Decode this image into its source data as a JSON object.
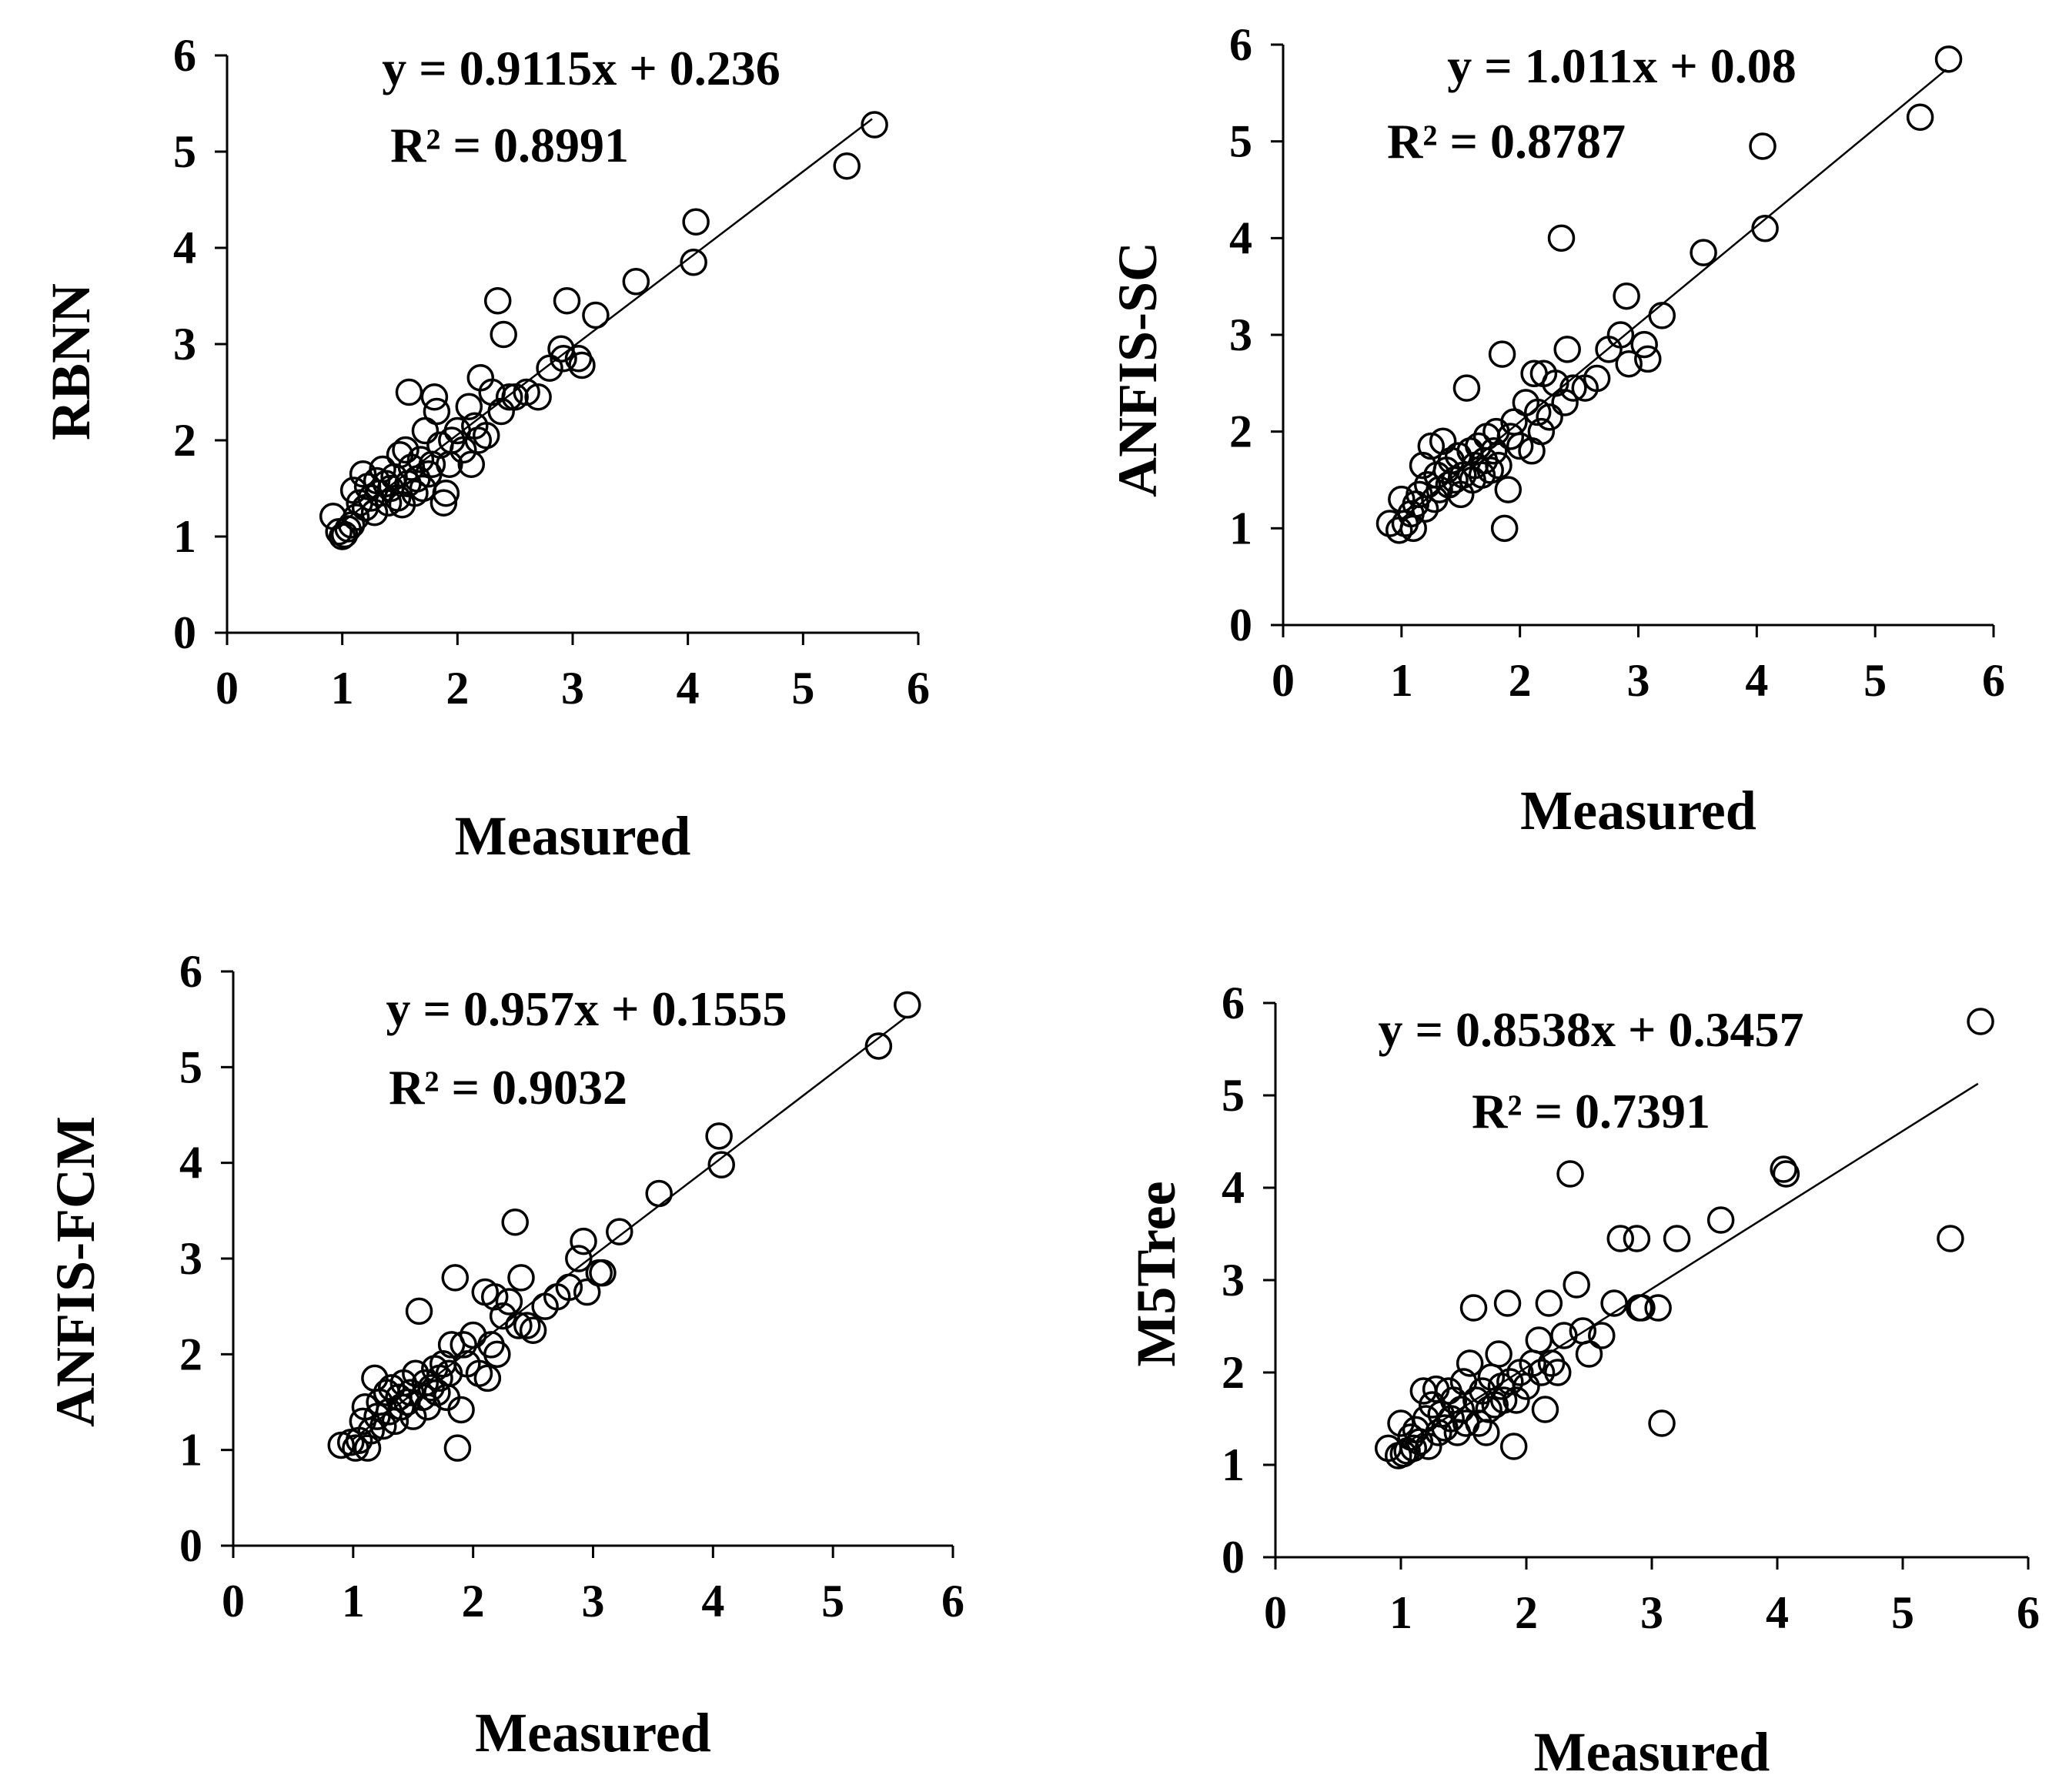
{
  "chart_data": [
    {
      "type": "scatter",
      "ylabel": "RBNN",
      "xlabel": "Measured",
      "equation": "y = 0.9115x + 0.236",
      "r2": "R² = 0.8991",
      "trend": {
        "slope": 0.9115,
        "intercept": 0.236,
        "x_range": [
          1.0,
          5.6
        ]
      },
      "xlim": [
        0,
        6
      ],
      "ylim": [
        0,
        6
      ],
      "xticks": [
        "0",
        "1",
        "2",
        "3",
        "4",
        "5",
        "6"
      ],
      "yticks": [
        "0",
        "1",
        "2",
        "3",
        "4",
        "5",
        "6"
      ],
      "points": [
        [
          0.92,
          1.21
        ],
        [
          0.97,
          1.05
        ],
        [
          1.0,
          1.0
        ],
        [
          1.02,
          1.02
        ],
        [
          1.05,
          1.08
        ],
        [
          1.08,
          1.12
        ],
        [
          1.1,
          1.48
        ],
        [
          1.12,
          1.2
        ],
        [
          1.15,
          1.35
        ],
        [
          1.18,
          1.65
        ],
        [
          1.2,
          1.3
        ],
        [
          1.22,
          1.52
        ],
        [
          1.25,
          1.4
        ],
        [
          1.28,
          1.25
        ],
        [
          1.3,
          1.58
        ],
        [
          1.32,
          1.45
        ],
        [
          1.35,
          1.7
        ],
        [
          1.38,
          1.55
        ],
        [
          1.4,
          1.35
        ],
        [
          1.42,
          1.5
        ],
        [
          1.45,
          1.62
        ],
        [
          1.48,
          1.4
        ],
        [
          1.5,
          1.85
        ],
        [
          1.52,
          1.33
        ],
        [
          1.55,
          1.9
        ],
        [
          1.57,
          1.55
        ],
        [
          1.58,
          2.5
        ],
        [
          1.6,
          1.72
        ],
        [
          1.63,
          1.45
        ],
        [
          1.65,
          1.6
        ],
        [
          1.68,
          1.8
        ],
        [
          1.7,
          1.5
        ],
        [
          1.72,
          2.1
        ],
        [
          1.75,
          1.65
        ],
        [
          1.78,
          1.75
        ],
        [
          1.8,
          2.45
        ],
        [
          1.82,
          2.3
        ],
        [
          1.85,
          1.95
        ],
        [
          1.88,
          1.35
        ],
        [
          1.9,
          1.45
        ],
        [
          1.93,
          1.75
        ],
        [
          1.95,
          2.0
        ],
        [
          2.0,
          2.1
        ],
        [
          2.05,
          1.9
        ],
        [
          2.1,
          2.35
        ],
        [
          2.12,
          1.75
        ],
        [
          2.15,
          2.15
        ],
        [
          2.18,
          2.0
        ],
        [
          2.2,
          2.65
        ],
        [
          2.25,
          2.05
        ],
        [
          2.3,
          2.5
        ],
        [
          2.35,
          3.45
        ],
        [
          2.38,
          2.3
        ],
        [
          2.4,
          3.1
        ],
        [
          2.45,
          2.45
        ],
        [
          2.5,
          2.45
        ],
        [
          2.6,
          2.5
        ],
        [
          2.7,
          2.45
        ],
        [
          2.8,
          2.75
        ],
        [
          2.9,
          2.95
        ],
        [
          2.92,
          2.85
        ],
        [
          2.95,
          3.45
        ],
        [
          3.05,
          2.85
        ],
        [
          3.08,
          2.78
        ],
        [
          3.2,
          3.3
        ],
        [
          3.55,
          3.65
        ],
        [
          4.05,
          3.85
        ],
        [
          4.07,
          4.27
        ],
        [
          5.38,
          4.85
        ],
        [
          5.62,
          5.28
        ]
      ]
    },
    {
      "type": "scatter",
      "ylabel": "ANFIS-SC",
      "xlabel": "Measured",
      "equation": "y = 1.011x + 0.08",
      "r2": "R² = 0.8787",
      "trend": {
        "slope": 1.011,
        "intercept": 0.08,
        "x_range": [
          1.0,
          5.6
        ]
      },
      "xlim": [
        0,
        6
      ],
      "ylim": [
        0,
        6
      ],
      "xticks": [
        "0",
        "1",
        "2",
        "3",
        "4",
        "5",
        "6"
      ],
      "yticks": [
        "0",
        "1",
        "2",
        "3",
        "4",
        "5",
        "6"
      ],
      "points": [
        [
          0.9,
          1.05
        ],
        [
          0.98,
          0.98
        ],
        [
          1.0,
          1.3
        ],
        [
          1.03,
          1.05
        ],
        [
          1.08,
          1.15
        ],
        [
          1.1,
          1.0
        ],
        [
          1.12,
          1.25
        ],
        [
          1.15,
          1.35
        ],
        [
          1.18,
          1.65
        ],
        [
          1.2,
          1.2
        ],
        [
          1.22,
          1.45
        ],
        [
          1.25,
          1.85
        ],
        [
          1.28,
          1.3
        ],
        [
          1.3,
          1.55
        ],
        [
          1.32,
          1.4
        ],
        [
          1.35,
          1.9
        ],
        [
          1.38,
          1.6
        ],
        [
          1.4,
          1.45
        ],
        [
          1.42,
          1.7
        ],
        [
          1.45,
          1.5
        ],
        [
          1.48,
          1.75
        ],
        [
          1.5,
          1.35
        ],
        [
          1.52,
          1.55
        ],
        [
          1.55,
          2.45
        ],
        [
          1.58,
          1.8
        ],
        [
          1.6,
          1.5
        ],
        [
          1.62,
          1.65
        ],
        [
          1.65,
          1.85
        ],
        [
          1.68,
          1.55
        ],
        [
          1.7,
          1.7
        ],
        [
          1.72,
          1.95
        ],
        [
          1.75,
          1.6
        ],
        [
          1.78,
          1.8
        ],
        [
          1.8,
          2.0
        ],
        [
          1.82,
          1.65
        ],
        [
          1.85,
          2.8
        ],
        [
          1.87,
          1.0
        ],
        [
          1.9,
          1.4
        ],
        [
          1.92,
          1.95
        ],
        [
          1.95,
          2.1
        ],
        [
          2.0,
          1.85
        ],
        [
          2.05,
          2.3
        ],
        [
          2.1,
          1.8
        ],
        [
          2.12,
          2.6
        ],
        [
          2.15,
          2.2
        ],
        [
          2.18,
          2.0
        ],
        [
          2.2,
          2.6
        ],
        [
          2.25,
          2.15
        ],
        [
          2.3,
          2.5
        ],
        [
          2.35,
          4.0
        ],
        [
          2.38,
          2.3
        ],
        [
          2.4,
          2.85
        ],
        [
          2.45,
          2.45
        ],
        [
          2.55,
          2.45
        ],
        [
          2.65,
          2.55
        ],
        [
          2.75,
          2.85
        ],
        [
          2.85,
          3.0
        ],
        [
          2.9,
          3.4
        ],
        [
          2.92,
          2.7
        ],
        [
          3.05,
          2.9
        ],
        [
          3.08,
          2.75
        ],
        [
          3.2,
          3.2
        ],
        [
          3.55,
          3.85
        ],
        [
          4.05,
          4.95
        ],
        [
          4.07,
          4.1
        ],
        [
          5.38,
          5.25
        ],
        [
          5.62,
          5.85
        ]
      ]
    },
    {
      "type": "scatter",
      "ylabel": "ANFIS-FCM",
      "xlabel": "Measured",
      "equation": "y = 0.957x + 0.1555",
      "r2": "R² = 0.9032",
      "trend": {
        "slope": 0.957,
        "intercept": 0.1555,
        "x_range": [
          1.0,
          5.6
        ]
      },
      "xlim": [
        0,
        6
      ],
      "ylim": [
        0,
        6
      ],
      "xticks": [
        "0",
        "1",
        "2",
        "3",
        "4",
        "5",
        "6"
      ],
      "yticks": [
        "0",
        "1",
        "2",
        "3",
        "4",
        "5",
        "6"
      ],
      "points": [
        [
          0.9,
          1.05
        ],
        [
          0.98,
          1.08
        ],
        [
          1.02,
          1.02
        ],
        [
          1.05,
          1.1
        ],
        [
          1.08,
          1.3
        ],
        [
          1.1,
          1.45
        ],
        [
          1.12,
          1.02
        ],
        [
          1.15,
          1.2
        ],
        [
          1.18,
          1.75
        ],
        [
          1.2,
          1.35
        ],
        [
          1.22,
          1.5
        ],
        [
          1.25,
          1.25
        ],
        [
          1.28,
          1.6
        ],
        [
          1.3,
          1.4
        ],
        [
          1.32,
          1.65
        ],
        [
          1.35,
          1.3
        ],
        [
          1.38,
          1.55
        ],
        [
          1.4,
          1.45
        ],
        [
          1.42,
          1.7
        ],
        [
          1.45,
          1.5
        ],
        [
          1.48,
          1.6
        ],
        [
          1.5,
          1.35
        ],
        [
          1.52,
          1.8
        ],
        [
          1.55,
          2.45
        ],
        [
          1.58,
          1.55
        ],
        [
          1.6,
          1.7
        ],
        [
          1.62,
          1.45
        ],
        [
          1.65,
          1.65
        ],
        [
          1.68,
          1.85
        ],
        [
          1.7,
          1.6
        ],
        [
          1.72,
          1.75
        ],
        [
          1.75,
          1.9
        ],
        [
          1.78,
          1.55
        ],
        [
          1.8,
          1.8
        ],
        [
          1.82,
          2.1
        ],
        [
          1.85,
          2.8
        ],
        [
          1.87,
          1.02
        ],
        [
          1.9,
          1.42
        ],
        [
          1.92,
          2.1
        ],
        [
          1.95,
          1.9
        ],
        [
          2.0,
          2.2
        ],
        [
          2.05,
          1.8
        ],
        [
          2.1,
          2.65
        ],
        [
          2.12,
          1.75
        ],
        [
          2.15,
          2.1
        ],
        [
          2.18,
          2.6
        ],
        [
          2.2,
          2.0
        ],
        [
          2.25,
          2.4
        ],
        [
          2.3,
          2.55
        ],
        [
          2.35,
          3.38
        ],
        [
          2.38,
          2.3
        ],
        [
          2.4,
          2.8
        ],
        [
          2.45,
          2.3
        ],
        [
          2.5,
          2.25
        ],
        [
          2.6,
          2.5
        ],
        [
          2.7,
          2.6
        ],
        [
          2.8,
          2.7
        ],
        [
          2.88,
          3.0
        ],
        [
          2.92,
          3.18
        ],
        [
          2.95,
          2.65
        ],
        [
          3.05,
          2.85
        ],
        [
          3.08,
          2.85
        ],
        [
          3.22,
          3.28
        ],
        [
          3.55,
          3.68
        ],
        [
          4.05,
          4.28
        ],
        [
          4.07,
          3.98
        ],
        [
          5.38,
          5.22
        ],
        [
          5.62,
          5.65
        ]
      ]
    },
    {
      "type": "scatter",
      "ylabel": "M5Tree",
      "xlabel": "Measured",
      "equation": "y = 0.8538x + 0.3457",
      "r2": "R² = 0.7391",
      "trend": {
        "slope": 0.8538,
        "intercept": 0.3457,
        "x_range": [
          1.0,
          5.6
        ]
      },
      "xlim": [
        0,
        6
      ],
      "ylim": [
        0,
        6
      ],
      "xticks": [
        "0",
        "1",
        "2",
        "3",
        "4",
        "5",
        "6"
      ],
      "yticks": [
        "0",
        "1",
        "2",
        "3",
        "4",
        "5",
        "6"
      ],
      "points": [
        [
          0.9,
          1.18
        ],
        [
          0.98,
          1.1
        ],
        [
          1.0,
          1.45
        ],
        [
          1.02,
          1.12
        ],
        [
          1.05,
          1.15
        ],
        [
          1.08,
          1.3
        ],
        [
          1.1,
          1.18
        ],
        [
          1.12,
          1.38
        ],
        [
          1.15,
          1.25
        ],
        [
          1.18,
          1.8
        ],
        [
          1.2,
          1.5
        ],
        [
          1.22,
          1.2
        ],
        [
          1.25,
          1.65
        ],
        [
          1.28,
          1.82
        ],
        [
          1.3,
          1.35
        ],
        [
          1.32,
          1.55
        ],
        [
          1.35,
          1.4
        ],
        [
          1.38,
          1.8
        ],
        [
          1.4,
          1.5
        ],
        [
          1.42,
          1.7
        ],
        [
          1.45,
          1.35
        ],
        [
          1.48,
          1.6
        ],
        [
          1.5,
          1.9
        ],
        [
          1.52,
          1.45
        ],
        [
          1.55,
          2.1
        ],
        [
          1.58,
          2.7
        ],
        [
          1.6,
          1.7
        ],
        [
          1.62,
          1.45
        ],
        [
          1.65,
          1.8
        ],
        [
          1.68,
          1.35
        ],
        [
          1.7,
          1.6
        ],
        [
          1.72,
          1.95
        ],
        [
          1.75,
          1.65
        ],
        [
          1.78,
          2.2
        ],
        [
          1.8,
          1.85
        ],
        [
          1.82,
          1.7
        ],
        [
          1.85,
          2.75
        ],
        [
          1.87,
          1.9
        ],
        [
          1.9,
          1.2
        ],
        [
          1.92,
          1.7
        ],
        [
          1.95,
          2.0
        ],
        [
          2.0,
          1.85
        ],
        [
          2.05,
          2.1
        ],
        [
          2.1,
          2.35
        ],
        [
          2.12,
          2.0
        ],
        [
          2.15,
          1.6
        ],
        [
          2.18,
          2.75
        ],
        [
          2.2,
          2.1
        ],
        [
          2.25,
          2.0
        ],
        [
          2.3,
          2.4
        ],
        [
          2.35,
          4.15
        ],
        [
          2.4,
          2.95
        ],
        [
          2.45,
          2.45
        ],
        [
          2.5,
          2.2
        ],
        [
          2.6,
          2.4
        ],
        [
          2.7,
          2.75
        ],
        [
          2.75,
          3.45
        ],
        [
          2.88,
          3.45
        ],
        [
          2.9,
          2.7
        ],
        [
          2.92,
          2.7
        ],
        [
          3.05,
          2.7
        ],
        [
          3.08,
          1.45
        ],
        [
          3.2,
          3.45
        ],
        [
          3.55,
          3.65
        ],
        [
          4.05,
          4.2
        ],
        [
          4.07,
          4.15
        ],
        [
          5.38,
          3.45
        ],
        [
          5.62,
          5.8
        ]
      ]
    }
  ]
}
